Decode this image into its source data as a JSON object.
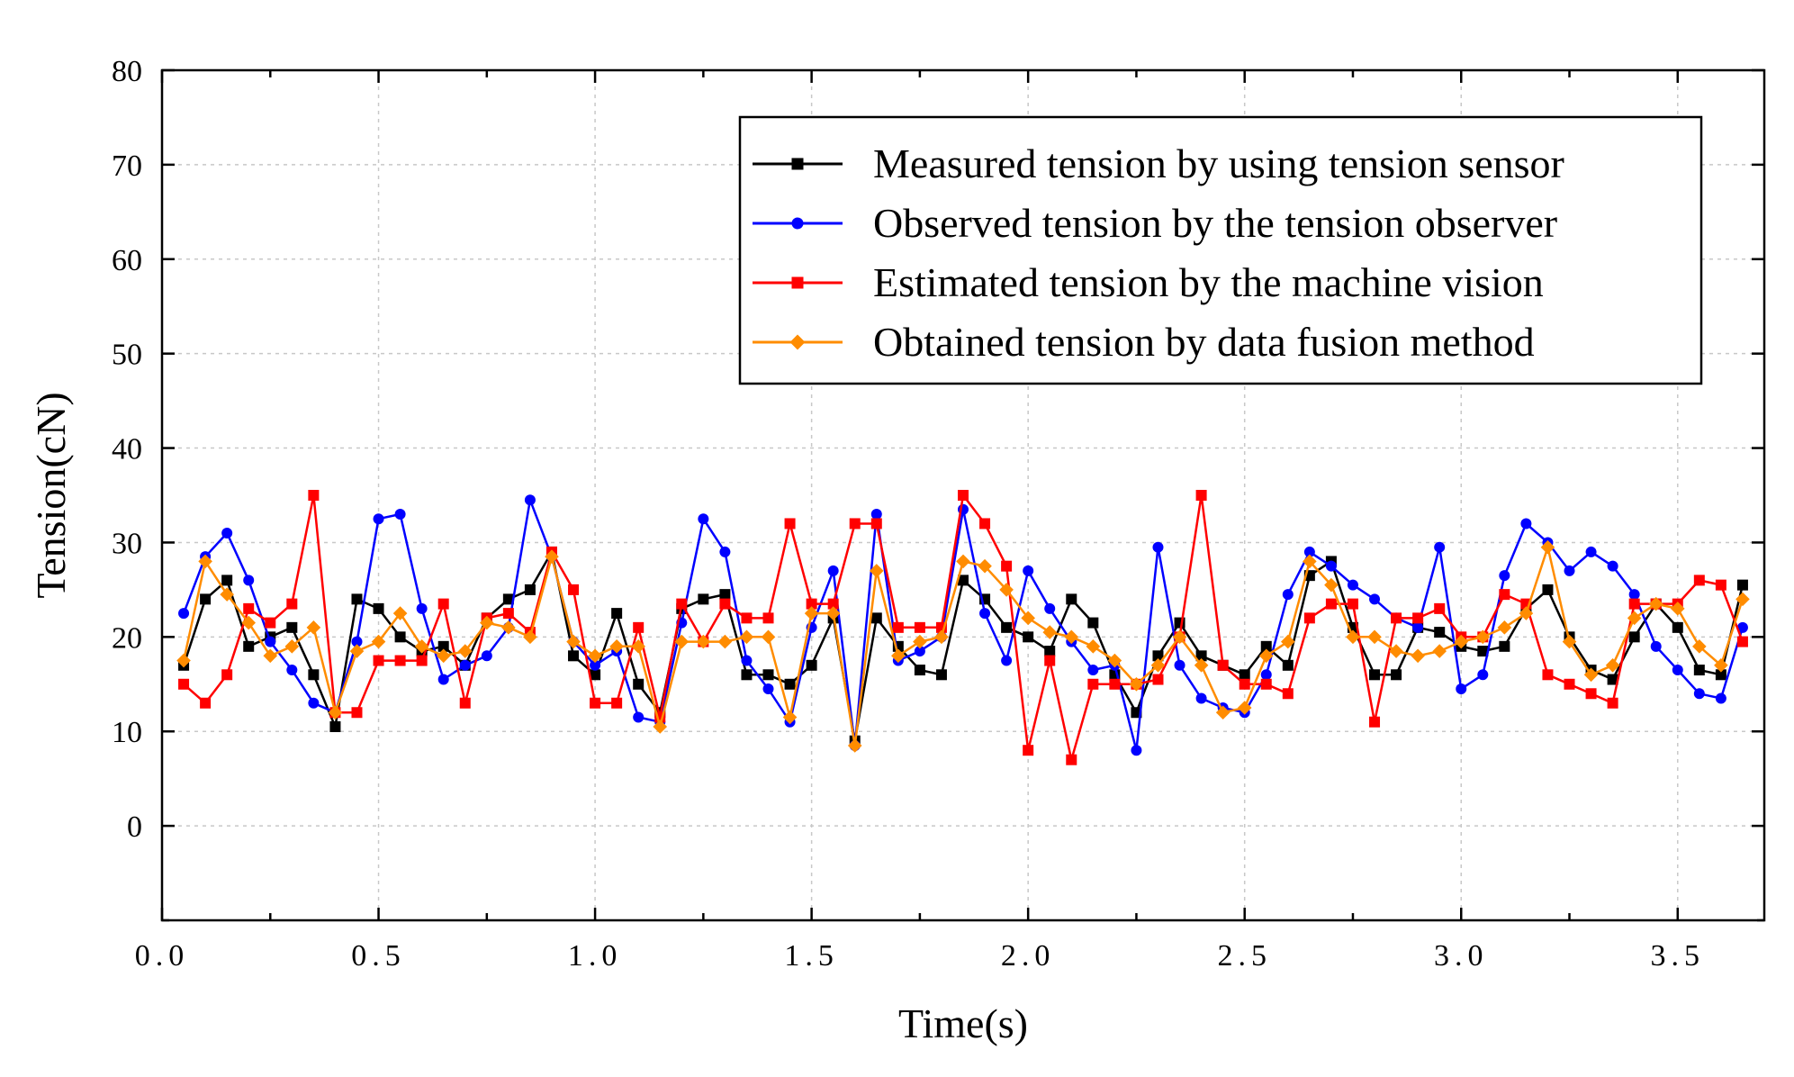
{
  "chart_data": {
    "type": "line",
    "title": "",
    "xlabel": "Time(s)",
    "ylabel": "Tension(cN)",
    "xlim": [
      0.0,
      3.7
    ],
    "ylim": [
      -10,
      80
    ],
    "x_major_ticks": [
      0.0,
      0.5,
      1.0,
      1.5,
      2.0,
      2.5,
      3.0,
      3.5
    ],
    "x_tick_labels": [
      "0.0",
      "0.5",
      "1.0",
      "1.5",
      "2.0",
      "2.5",
      "3.0",
      "3.5"
    ],
    "y_major_ticks": [
      0,
      10,
      20,
      30,
      40,
      50,
      60,
      70,
      80
    ],
    "y_tick_labels": [
      "0",
      "10",
      "20",
      "30",
      "40",
      "50",
      "60",
      "70",
      "80"
    ],
    "grid": true,
    "legend_position": "top-right",
    "x": [
      0.05,
      0.1,
      0.15,
      0.2,
      0.25,
      0.3,
      0.35,
      0.4,
      0.45,
      0.5,
      0.55,
      0.6,
      0.65,
      0.7,
      0.75,
      0.8,
      0.85,
      0.9,
      0.95,
      1.0,
      1.05,
      1.1,
      1.15,
      1.2,
      1.25,
      1.3,
      1.35,
      1.4,
      1.45,
      1.5,
      1.55,
      1.6,
      1.65,
      1.7,
      1.75,
      1.8,
      1.85,
      1.9,
      1.95,
      2.0,
      2.05,
      2.1,
      2.15,
      2.2,
      2.25,
      2.3,
      2.35,
      2.4,
      2.45,
      2.5,
      2.55,
      2.6,
      2.65,
      2.7,
      2.75,
      2.8,
      2.85,
      2.9,
      2.95,
      3.0,
      3.05,
      3.1,
      3.15,
      3.2,
      3.25,
      3.3,
      3.35,
      3.4,
      3.45,
      3.5,
      3.55,
      3.6,
      3.65
    ],
    "series": [
      {
        "name": "Measured tension by using tension sensor",
        "color": "#000000",
        "marker": "square",
        "values": [
          17,
          24,
          26,
          19,
          20,
          21,
          16,
          10.5,
          24,
          23,
          20,
          18.5,
          19,
          17,
          22,
          24,
          25,
          29,
          18,
          16,
          22.5,
          15,
          12,
          23,
          24,
          24.5,
          16,
          16,
          15,
          17,
          22,
          9,
          22,
          19,
          16.5,
          16,
          26,
          24,
          21,
          20,
          18.5,
          24,
          21.5,
          16,
          12,
          18,
          21.5,
          18,
          17,
          16,
          19,
          17,
          26.5,
          28,
          21,
          16,
          16,
          21,
          20.5,
          19,
          18.5,
          19,
          23,
          25,
          20,
          16.5,
          15.5,
          20,
          23.5,
          21,
          16.5,
          16,
          25.5
        ]
      },
      {
        "name": "Observed  tension by the tension observer",
        "color": "#0000ff",
        "marker": "circle",
        "values": [
          22.5,
          28.5,
          31,
          26,
          19.5,
          16.5,
          13,
          12,
          19.5,
          32.5,
          33,
          23,
          15.5,
          17,
          18,
          21,
          34.5,
          28.5,
          19.5,
          17,
          18.5,
          11.5,
          11,
          21.5,
          32.5,
          29,
          17.5,
          14.5,
          11,
          21,
          27,
          8.5,
          33,
          17.5,
          18.5,
          20,
          33.5,
          22.5,
          17.5,
          27,
          23,
          19.5,
          16.5,
          17,
          8,
          29.5,
          17,
          13.5,
          12.5,
          12,
          16,
          24.5,
          29,
          27.5,
          25.5,
          24,
          22,
          21,
          29.5,
          14.5,
          16,
          26.5,
          32,
          30,
          27,
          29,
          27.5,
          24.5,
          19,
          16.5,
          14,
          13.5,
          21
        ]
      },
      {
        "name": "Estimated tension by the machine vision",
        "color": "#ff0000",
        "marker": "square",
        "values": [
          15,
          13,
          16,
          23,
          21.5,
          23.5,
          35,
          12,
          12,
          17.5,
          17.5,
          17.5,
          23.5,
          13,
          22,
          22.5,
          20.5,
          29,
          25,
          13,
          13,
          21,
          11.5,
          23.5,
          19.5,
          23.5,
          22,
          22,
          32,
          23.5,
          23.5,
          32,
          32,
          21,
          21,
          21,
          35,
          32,
          27.5,
          8,
          17.5,
          7,
          15,
          15,
          15,
          15.5,
          20,
          35,
          17,
          15,
          15,
          14,
          22,
          23.5,
          23.5,
          11,
          22,
          22,
          23,
          20,
          20,
          24.5,
          23.5,
          16,
          15,
          14,
          13,
          23.5,
          23.5,
          23.5,
          26,
          25.5,
          19.5
        ]
      },
      {
        "name": "Obtained tension by data fusion method",
        "color": "#ff8c00",
        "marker": "diamond",
        "values": [
          17.5,
          28,
          24.5,
          21.5,
          18,
          19,
          21,
          12,
          18.5,
          19.5,
          22.5,
          19,
          18,
          18.5,
          21.5,
          21,
          20,
          28.5,
          19.5,
          18,
          19,
          19,
          10.5,
          19.5,
          19.5,
          19.5,
          20,
          20,
          11.5,
          22.5,
          22.5,
          8.5,
          27,
          18,
          19.5,
          20,
          28,
          27.5,
          25,
          22,
          20.5,
          20,
          19,
          17.5,
          15,
          17,
          20,
          17,
          12,
          12.5,
          18,
          19.5,
          28,
          25.5,
          20,
          20,
          18.5,
          18,
          18.5,
          19.5,
          20,
          21,
          22.5,
          29.5,
          19.5,
          16,
          17,
          22,
          23.5,
          23,
          19,
          17,
          24
        ]
      }
    ]
  }
}
